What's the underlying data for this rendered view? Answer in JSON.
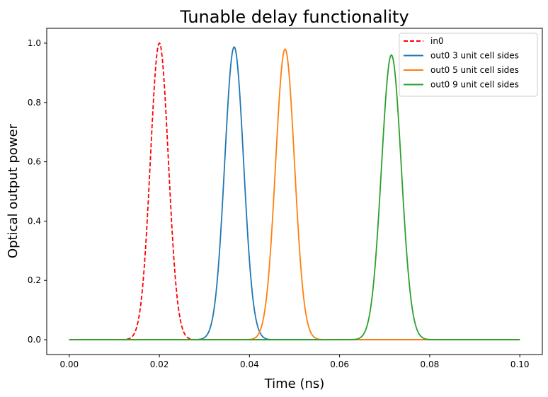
{
  "chart_data": {
    "type": "line",
    "title": "Tunable delay functionality",
    "xlabel": "Time (ns)",
    "ylabel": "Optical output power",
    "xlim": [
      -0.005,
      0.105
    ],
    "ylim": [
      -0.05,
      1.05
    ],
    "xticks": [
      0.0,
      0.02,
      0.04,
      0.06,
      0.08,
      0.1
    ],
    "xtick_labels": [
      "0.00",
      "0.02",
      "0.04",
      "0.06",
      "0.08",
      "0.10"
    ],
    "yticks": [
      0.0,
      0.2,
      0.4,
      0.6,
      0.8,
      1.0
    ],
    "ytick_labels": [
      "0.0",
      "0.2",
      "0.4",
      "0.6",
      "0.8",
      "1.0"
    ],
    "grid": false,
    "legend_position": "top-right",
    "x_range": [
      0.0,
      0.1
    ],
    "series": [
      {
        "name": "in0",
        "color": "#ff0000",
        "dashed": true,
        "peak_time": 0.02,
        "peak_power": 1.0,
        "sigma": 0.002
      },
      {
        "name": "out0 3 unit cell sides",
        "color": "#1f77b4",
        "dashed": false,
        "peak_time": 0.0366,
        "peak_power": 0.987,
        "sigma": 0.0021
      },
      {
        "name": "out0 5 unit cell sides",
        "color": "#ff7f0e",
        "dashed": false,
        "peak_time": 0.0479,
        "peak_power": 0.98,
        "sigma": 0.0021
      },
      {
        "name": "out0 9 unit cell sides",
        "color": "#2ca02c",
        "dashed": false,
        "peak_time": 0.0715,
        "peak_power": 0.96,
        "sigma": 0.0022
      }
    ]
  }
}
